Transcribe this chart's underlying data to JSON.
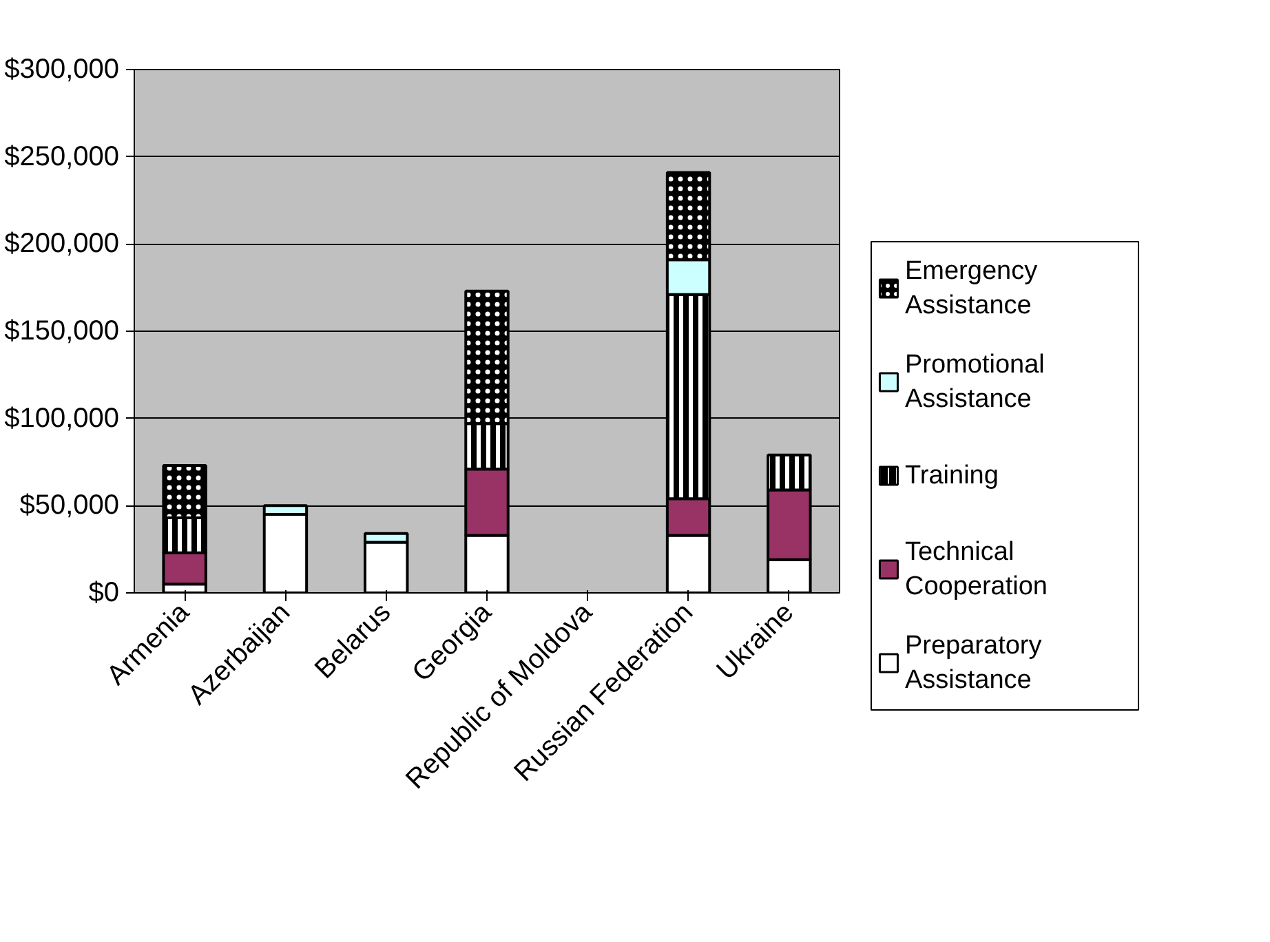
{
  "chart_data": {
    "type": "bar",
    "stacked": true,
    "categories": [
      "Armenia",
      "Azerbaijan",
      "Belarus",
      "Georgia",
      "Republic of Moldova",
      "Russian Federation",
      "Ukraine"
    ],
    "series": [
      {
        "name": "Preparatory Assistance",
        "color": "#ffffff",
        "values": [
          5000,
          45000,
          29000,
          33000,
          null,
          33000,
          19000
        ]
      },
      {
        "name": "Technical Cooperation",
        "color": "#993366",
        "values": [
          18000,
          null,
          null,
          38000,
          null,
          21000,
          40000
        ]
      },
      {
        "name": "Training",
        "color": "#000000",
        "values": [
          20000,
          null,
          null,
          26000,
          null,
          117000,
          20000
        ]
      },
      {
        "name": "Promotional Assistance",
        "color": "#ccffff",
        "values": [
          null,
          5000,
          5000,
          null,
          null,
          20000,
          null
        ]
      },
      {
        "name": "Emergency Assistance",
        "color": "#000000",
        "values": [
          30000,
          null,
          null,
          76000,
          null,
          50000,
          null
        ]
      }
    ],
    "ylim": [
      0,
      300000
    ],
    "yticks": [
      {
        "value": 0,
        "label": "$0"
      },
      {
        "value": 50000,
        "label": "$50,000"
      },
      {
        "value": 100000,
        "label": "$100,000"
      },
      {
        "value": 150000,
        "label": "$150,000"
      },
      {
        "value": 200000,
        "label": "$200,000"
      },
      {
        "value": 250000,
        "label": "$250,000"
      },
      {
        "value": 300000,
        "label": "$300,000"
      }
    ],
    "grid": "y",
    "legend": "right"
  }
}
